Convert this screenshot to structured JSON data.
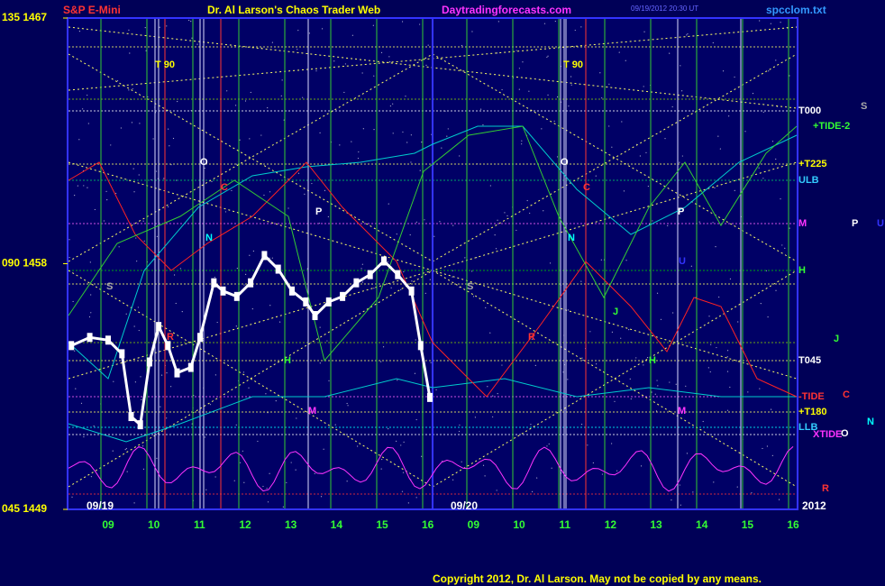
{
  "chart_data": {
    "type": "line",
    "symbol": "S&P E-Mini",
    "title": "Dr. Al Larson's Chaos Trader Web",
    "site": "Daytradingforecasts.com",
    "timestamp": "09/19/2012 20:30 UT",
    "file": "spcclom.txt",
    "copyright": "Copyright 2012, Dr. Al Larson. May not be copied by any means.",
    "year": "2012",
    "day_labels": [
      "09/19",
      "09/20"
    ],
    "ylim": [
      1449,
      1467
    ],
    "yticks": [
      {
        "value": 1467,
        "label": "135 1467"
      },
      {
        "value": 1458,
        "label": "090 1458"
      },
      {
        "value": 1449,
        "label": "045 1449"
      }
    ],
    "xticks": [
      "09",
      "10",
      "11",
      "12",
      "13",
      "14",
      "15",
      "16",
      "09",
      "10",
      "11",
      "12",
      "13",
      "14",
      "15",
      "16"
    ],
    "right_labels": [
      "T000",
      "+TIDE-2",
      "+T225",
      "ULB",
      "M",
      "H",
      "T045",
      "-TIDE",
      "+T180",
      "LLB",
      "XTIDE"
    ],
    "plot_labels": [
      "T  90",
      "O",
      "C",
      "N",
      "P",
      "S",
      "R",
      "H",
      "M",
      "T  90",
      "O",
      "C",
      "N",
      "P",
      "S",
      "R",
      "H",
      "J",
      "M",
      "U",
      "S",
      "P",
      "U",
      "J",
      "N",
      "O",
      "R",
      "C"
    ],
    "series": [
      {
        "name": "S&P E-Mini",
        "color": "#ffffff",
        "x": [
          8.2,
          8.6,
          9.0,
          9.3,
          9.5,
          9.7,
          9.9,
          10.1,
          10.3,
          10.5,
          10.8,
          11.0,
          11.3,
          11.5,
          11.8,
          12.1,
          12.4,
          12.7,
          13.0,
          13.3,
          13.5,
          13.8,
          14.1,
          14.4,
          14.7,
          15.0,
          15.3,
          15.6,
          15.8,
          16.0
        ],
        "values": [
          1455.0,
          1455.3,
          1455.2,
          1454.7,
          1452.4,
          1452.1,
          1454.4,
          1455.7,
          1455.0,
          1454.0,
          1454.2,
          1455.3,
          1457.3,
          1457.0,
          1456.8,
          1457.3,
          1458.3,
          1457.8,
          1457.0,
          1456.6,
          1456.1,
          1456.6,
          1456.8,
          1457.3,
          1457.6,
          1458.1,
          1457.6,
          1457.0,
          1455.0,
          1453.1
        ]
      }
    ]
  }
}
